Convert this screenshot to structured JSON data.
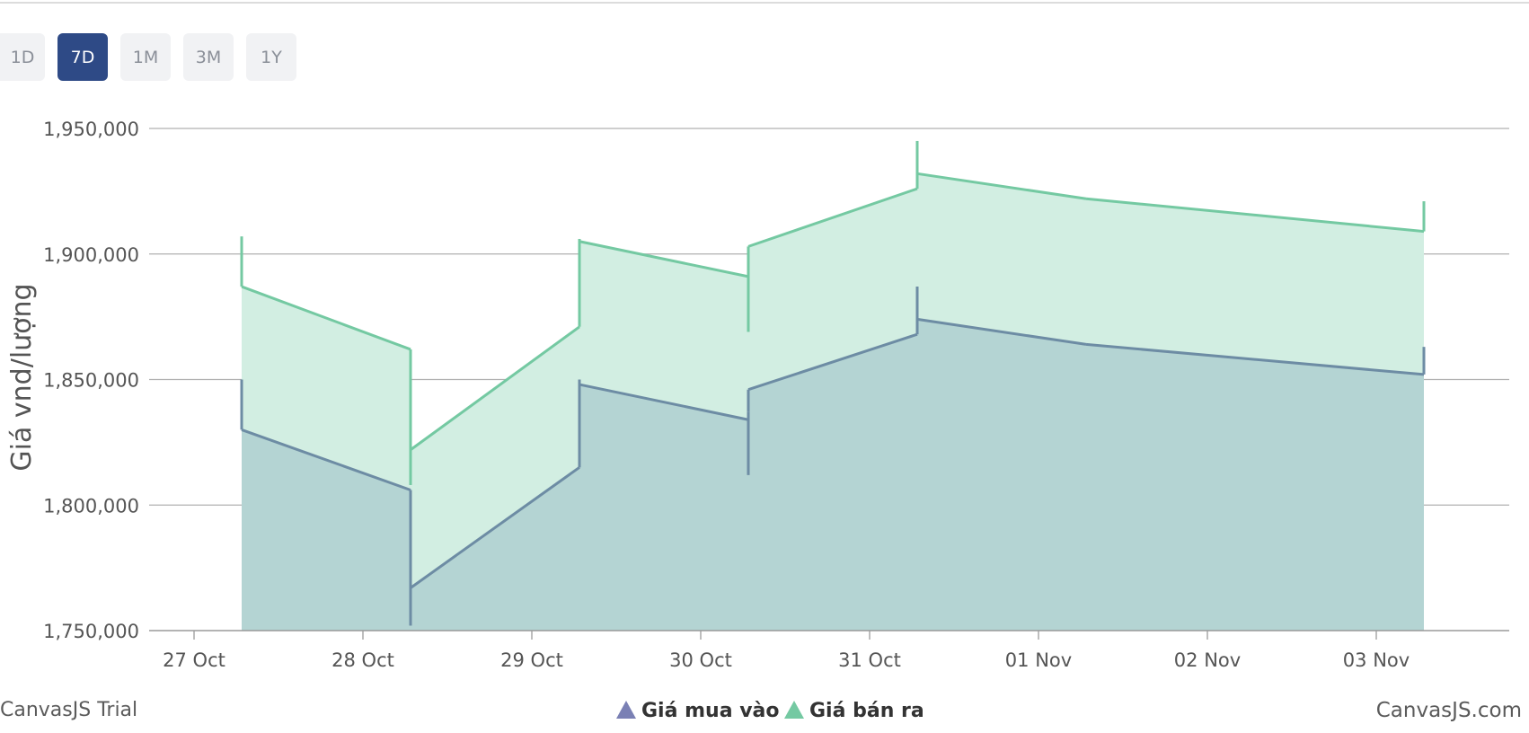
{
  "range_selector": {
    "buttons": [
      {
        "label": "1D",
        "active": false
      },
      {
        "label": "7D",
        "active": true
      },
      {
        "label": "1M",
        "active": false
      },
      {
        "label": "3M",
        "active": false
      },
      {
        "label": "1Y",
        "active": false
      }
    ]
  },
  "watermarks": {
    "left": "CanvasJS Trial",
    "right": "CanvasJS.com"
  },
  "chart_data": {
    "type": "area",
    "ylabel": "Giá vnd/lượng",
    "ylim": [
      1750000,
      1950000
    ],
    "yticks": [
      "1,750,000",
      "1,800,000",
      "1,850,000",
      "1,900,000",
      "1,950,000"
    ],
    "ytick_values": [
      1750000,
      1800000,
      1850000,
      1900000,
      1950000
    ],
    "xticks": [
      "27 Oct",
      "28 Oct",
      "29 Oct",
      "30 Oct",
      "31 Oct",
      "01 Nov",
      "02 Nov",
      "03 Nov"
    ],
    "grid": true,
    "legend": "bottom-center",
    "colors": {
      "buy": "#6d8ca4",
      "buy_fill": "#b4d4d3",
      "sell": "#74c9a2",
      "sell_fill": "#d2eee2",
      "grid": "#b0b0b0",
      "tick_text": "#555555"
    },
    "series": [
      {
        "name": "Giá mua vào",
        "points": [
          {
            "x": "27 Oct",
            "y": 1850000,
            "end_y": 1830000
          },
          {
            "x": "28 Oct",
            "y": 1806000,
            "end_y": 1752000
          },
          {
            "x": "28 Oct",
            "y": 1767000,
            "end_y": 1767000
          },
          {
            "x": "29 Oct",
            "y": 1815000,
            "end_y": 1850000
          },
          {
            "x": "29 Oct",
            "y": 1848000,
            "end_y": 1848000
          },
          {
            "x": "30 Oct",
            "y": 1834000,
            "end_y": 1812000
          },
          {
            "x": "30 Oct",
            "y": 1837000,
            "end_y": 1846000
          },
          {
            "x": "31 Oct",
            "y": 1868000,
            "end_y": 1887000
          },
          {
            "x": "31 Oct",
            "y": 1874000,
            "end_y": 1874000
          },
          {
            "x": "01 Nov",
            "y": 1864000,
            "end_y": 1864000
          },
          {
            "x": "03 Nov",
            "y": 1852000,
            "end_y": 1863000
          }
        ]
      },
      {
        "name": "Giá bán ra",
        "points": [
          {
            "x": "27 Oct",
            "y": 1907000,
            "end_y": 1887000
          },
          {
            "x": "28 Oct",
            "y": 1862000,
            "end_y": 1808000
          },
          {
            "x": "28 Oct",
            "y": 1822000,
            "end_y": 1822000
          },
          {
            "x": "29 Oct",
            "y": 1871000,
            "end_y": 1906000
          },
          {
            "x": "29 Oct",
            "y": 1905000,
            "end_y": 1905000
          },
          {
            "x": "30 Oct",
            "y": 1891000,
            "end_y": 1869000
          },
          {
            "x": "30 Oct",
            "y": 1894000,
            "end_y": 1903000
          },
          {
            "x": "31 Oct",
            "y": 1926000,
            "end_y": 1945000
          },
          {
            "x": "31 Oct",
            "y": 1932000,
            "end_y": 1932000
          },
          {
            "x": "01 Nov",
            "y": 1922000,
            "end_y": 1922000
          },
          {
            "x": "03 Nov",
            "y": 1909000,
            "end_y": 1921000
          }
        ]
      }
    ]
  }
}
